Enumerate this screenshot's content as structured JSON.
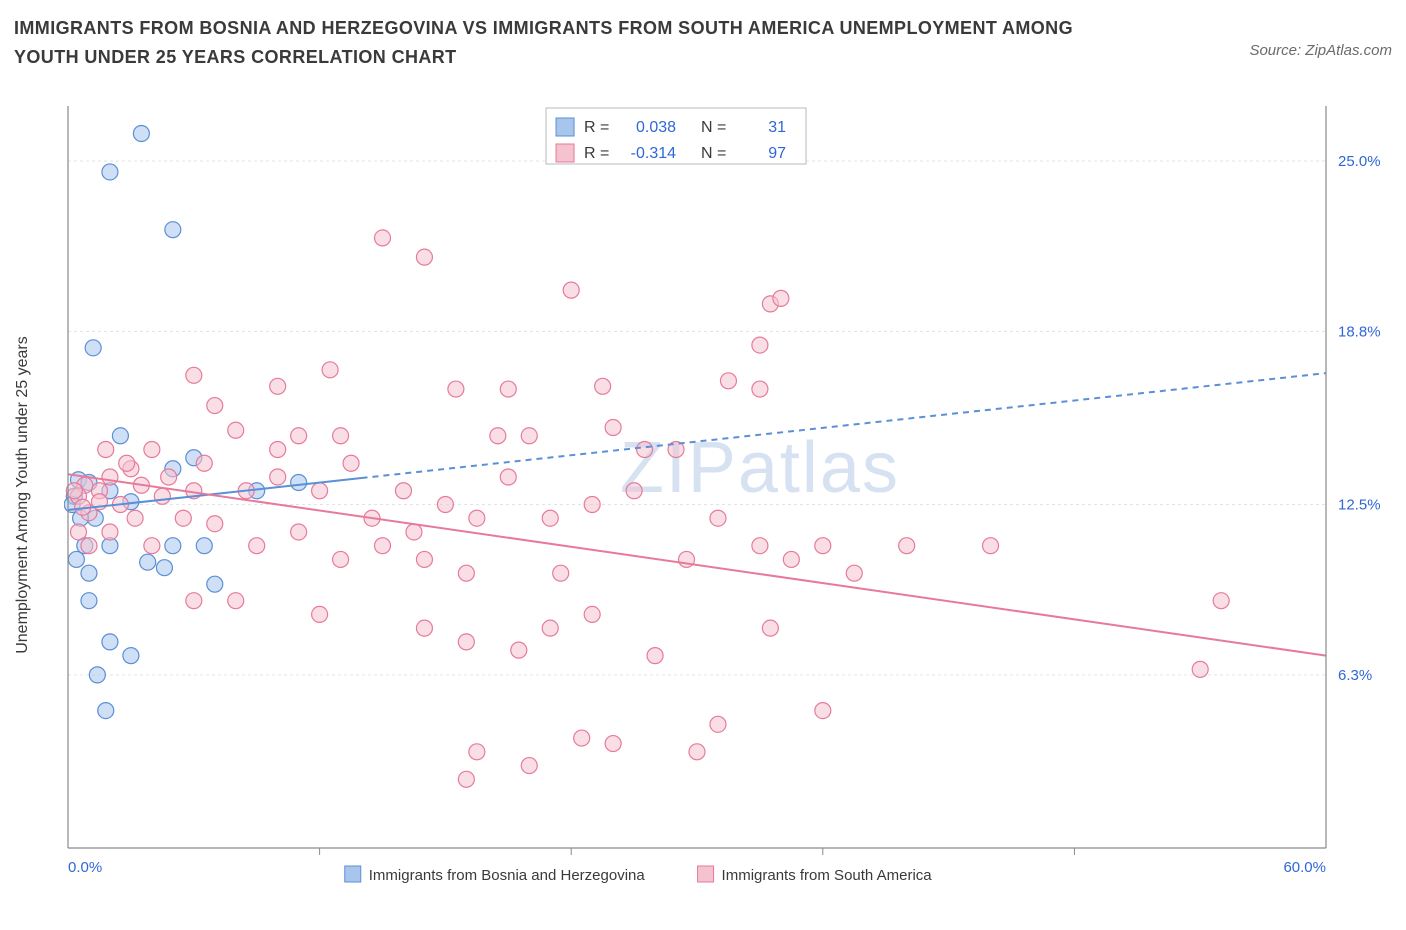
{
  "title": "IMMIGRANTS FROM BOSNIA AND HERZEGOVINA VS IMMIGRANTS FROM SOUTH AMERICA UNEMPLOYMENT AMONG YOUTH UNDER 25 YEARS CORRELATION CHART",
  "source": "Source: ZipAtlas.com",
  "y_axis_label": "Unemployment Among Youth under 25 years",
  "watermark": "ZIPatlas",
  "chart": {
    "type": "scatter",
    "xlim": [
      0,
      60
    ],
    "ylim": [
      0,
      27
    ],
    "x_ticks": [
      0,
      60
    ],
    "x_tick_labels": [
      "0.0%",
      "60.0%"
    ],
    "x_tick_minor": [
      12,
      24,
      36,
      48
    ],
    "y_ticks": [
      6.3,
      12.5,
      18.8,
      25.0
    ],
    "y_tick_labels": [
      "6.3%",
      "12.5%",
      "18.8%",
      "25.0%"
    ],
    "grid_color": "#e3e3e3",
    "axis_color": "#8a8a8a",
    "background": "#ffffff",
    "marker_radius": 8,
    "marker_opacity": 0.55,
    "series": [
      {
        "name": "Immigrants from Bosnia and Herzegovina",
        "color_fill": "#a8c5ec",
        "color_stroke": "#5b8fd6",
        "trend": {
          "slope": 0.083,
          "intercept": 12.3,
          "solid_xmax": 14,
          "dash_xmax": 60,
          "width": 2
        },
        "stats": {
          "R": "0.038",
          "N": "31"
        },
        "points": [
          [
            3.5,
            26.0
          ],
          [
            2.0,
            24.6
          ],
          [
            5.0,
            22.5
          ],
          [
            1.2,
            18.2
          ],
          [
            2.5,
            15.0
          ],
          [
            0.5,
            13.4
          ],
          [
            1.0,
            13.3
          ],
          [
            0.3,
            12.8
          ],
          [
            2.0,
            13.0
          ],
          [
            3.0,
            12.6
          ],
          [
            5.0,
            11.0
          ],
          [
            3.8,
            10.4
          ],
          [
            4.6,
            10.2
          ],
          [
            6.5,
            11.0
          ],
          [
            7.0,
            9.6
          ],
          [
            1.0,
            10.0
          ],
          [
            0.8,
            11.0
          ],
          [
            1.3,
            12.0
          ],
          [
            2.0,
            11.0
          ],
          [
            0.4,
            10.5
          ],
          [
            1.0,
            9.0
          ],
          [
            2.0,
            7.5
          ],
          [
            3.0,
            7.0
          ],
          [
            1.4,
            6.3
          ],
          [
            1.8,
            5.0
          ],
          [
            5.0,
            13.8
          ],
          [
            9.0,
            13.0
          ],
          [
            6.0,
            14.2
          ],
          [
            0.2,
            12.5
          ],
          [
            0.6,
            12.0
          ],
          [
            11.0,
            13.3
          ]
        ]
      },
      {
        "name": "Immigrants from South America",
        "color_fill": "#f5c2cf",
        "color_stroke": "#e77a9a",
        "trend": {
          "slope": -0.11,
          "intercept": 13.6,
          "solid_xmax": 60,
          "dash_xmax": 60,
          "width": 2
        },
        "stats": {
          "R": "-0.314",
          "N": "97"
        },
        "points": [
          [
            15.0,
            22.2
          ],
          [
            17.0,
            21.5
          ],
          [
            24.0,
            20.3
          ],
          [
            33.5,
            19.8
          ],
          [
            33.0,
            18.3
          ],
          [
            31.5,
            17.0
          ],
          [
            6.0,
            17.2
          ],
          [
            10.0,
            16.8
          ],
          [
            12.5,
            17.4
          ],
          [
            18.5,
            16.7
          ],
          [
            21.0,
            16.7
          ],
          [
            25.5,
            16.8
          ],
          [
            26.0,
            15.3
          ],
          [
            22.0,
            15.0
          ],
          [
            20.5,
            15.0
          ],
          [
            13.0,
            15.0
          ],
          [
            11.0,
            15.0
          ],
          [
            8.0,
            15.2
          ],
          [
            7.0,
            16.1
          ],
          [
            4.0,
            14.5
          ],
          [
            3.0,
            13.8
          ],
          [
            2.0,
            13.5
          ],
          [
            1.5,
            13.0
          ],
          [
            0.8,
            13.2
          ],
          [
            0.5,
            12.8
          ],
          [
            1.0,
            12.2
          ],
          [
            2.5,
            12.5
          ],
          [
            4.5,
            12.8
          ],
          [
            6.0,
            13.0
          ],
          [
            8.5,
            13.0
          ],
          [
            10.0,
            13.5
          ],
          [
            12.0,
            13.0
          ],
          [
            13.5,
            14.0
          ],
          [
            16.0,
            13.0
          ],
          [
            18.0,
            12.5
          ],
          [
            19.5,
            12.0
          ],
          [
            21.0,
            13.5
          ],
          [
            23.0,
            12.0
          ],
          [
            25.0,
            12.5
          ],
          [
            27.0,
            13.0
          ],
          [
            29.0,
            14.5
          ],
          [
            31.0,
            12.0
          ],
          [
            33.0,
            11.0
          ],
          [
            34.5,
            10.5
          ],
          [
            36.0,
            11.0
          ],
          [
            37.5,
            10.0
          ],
          [
            40.0,
            11.0
          ],
          [
            44.0,
            11.0
          ],
          [
            7.0,
            11.8
          ],
          [
            9.0,
            11.0
          ],
          [
            11.0,
            11.5
          ],
          [
            13.0,
            10.5
          ],
          [
            15.0,
            11.0
          ],
          [
            17.0,
            10.5
          ],
          [
            19.0,
            10.0
          ],
          [
            4.0,
            11.0
          ],
          [
            2.0,
            11.5
          ],
          [
            1.0,
            11.0
          ],
          [
            0.5,
            11.5
          ],
          [
            6.0,
            9.0
          ],
          [
            8.0,
            9.0
          ],
          [
            12.0,
            8.5
          ],
          [
            17.0,
            8.0
          ],
          [
            19.0,
            7.5
          ],
          [
            21.5,
            7.2
          ],
          [
            23.0,
            8.0
          ],
          [
            25.0,
            8.5
          ],
          [
            28.0,
            7.0
          ],
          [
            31.0,
            4.5
          ],
          [
            24.5,
            4.0
          ],
          [
            26.0,
            3.8
          ],
          [
            22.0,
            3.0
          ],
          [
            19.5,
            3.5
          ],
          [
            19.0,
            2.5
          ],
          [
            33.5,
            8.0
          ],
          [
            36.0,
            5.0
          ],
          [
            55.0,
            9.0
          ],
          [
            54.0,
            6.5
          ],
          [
            1.5,
            12.6
          ],
          [
            3.5,
            13.2
          ],
          [
            5.5,
            12.0
          ],
          [
            0.3,
            13.0
          ],
          [
            0.7,
            12.4
          ],
          [
            10.0,
            14.5
          ],
          [
            14.5,
            12.0
          ],
          [
            16.5,
            11.5
          ],
          [
            29.5,
            10.5
          ],
          [
            27.5,
            14.5
          ],
          [
            23.5,
            10.0
          ],
          [
            6.5,
            14.0
          ],
          [
            4.8,
            13.5
          ],
          [
            2.8,
            14.0
          ],
          [
            1.8,
            14.5
          ],
          [
            3.2,
            12.0
          ],
          [
            33.0,
            16.7
          ],
          [
            34.0,
            20.0
          ],
          [
            30.0,
            3.5
          ]
        ]
      }
    ]
  },
  "legend_box": {
    "rows": [
      {
        "swatch_fill": "#a8c5ec",
        "swatch_stroke": "#5b8fd6",
        "R": "0.038",
        "N": "31"
      },
      {
        "swatch_fill": "#f5c2cf",
        "swatch_stroke": "#e77a9a",
        "R": "-0.314",
        "N": "97"
      }
    ]
  },
  "bottom_legend": [
    {
      "swatch_fill": "#a8c5ec",
      "swatch_stroke": "#5b8fd6",
      "label": "Immigrants from Bosnia and Herzegovina"
    },
    {
      "swatch_fill": "#f5c2cf",
      "swatch_stroke": "#e77a9a",
      "label": "Immigrants from South America"
    }
  ]
}
